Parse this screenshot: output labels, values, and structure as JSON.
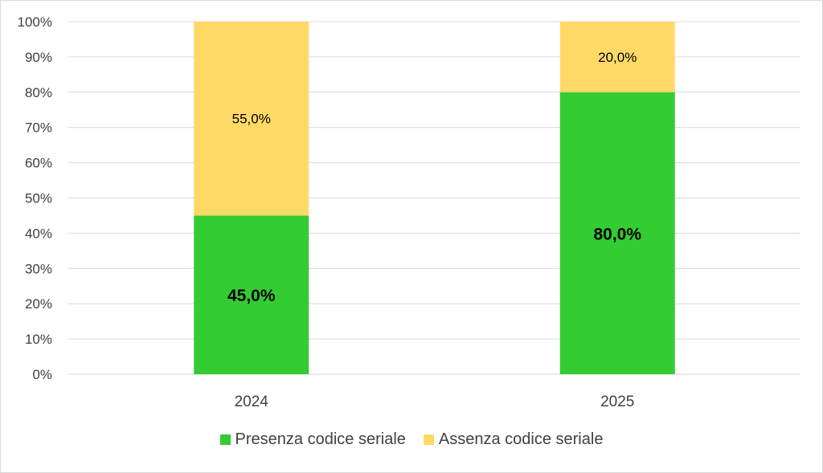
{
  "chart_data": {
    "type": "bar",
    "stacked": true,
    "categories": [
      "2024",
      "2025"
    ],
    "series": [
      {
        "name": "Presenza codice seriale",
        "values": [
          45.0,
          80.0
        ],
        "labels": [
          "45,0%",
          "80,0%"
        ],
        "color": "#33cc33"
      },
      {
        "name": "Assenza codice seriale",
        "values": [
          55.0,
          20.0
        ],
        "labels": [
          "55,0%",
          "20,0%"
        ],
        "color": "#ffd966"
      }
    ],
    "ylim": [
      0,
      100
    ],
    "yticks": [
      "0%",
      "10%",
      "20%",
      "30%",
      "40%",
      "50%",
      "60%",
      "70%",
      "80%",
      "90%",
      "100%"
    ],
    "grid": true,
    "legend_position": "bottom",
    "gridline_color": "#d9d9d9"
  }
}
